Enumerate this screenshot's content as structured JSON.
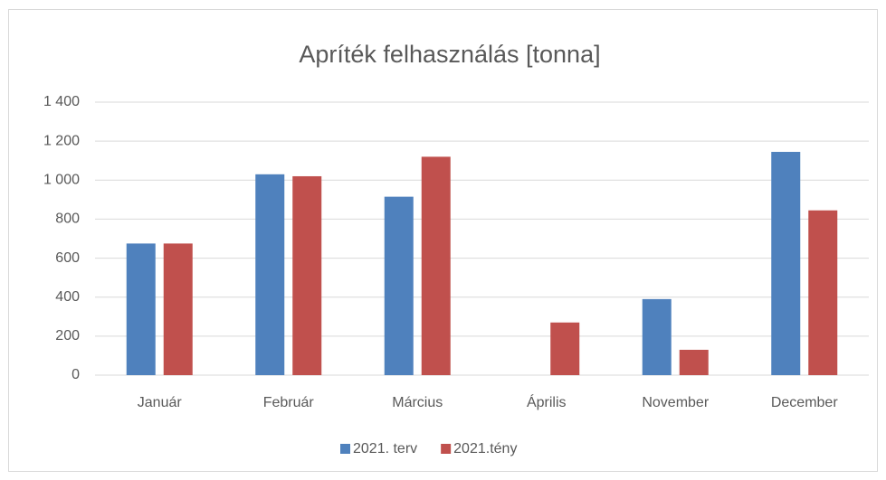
{
  "chart_data": {
    "type": "bar",
    "title": "Apríték felhasználás [tonna]",
    "categories": [
      "Január",
      "Február",
      "Március",
      "Április",
      "November",
      "December"
    ],
    "series": [
      {
        "name": "2021. terv",
        "color": "#4f81bd",
        "values": [
          675,
          1030,
          915,
          0,
          390,
          1145
        ]
      },
      {
        "name": "2021.tény",
        "color": "#c0504d",
        "values": [
          675,
          1020,
          1120,
          270,
          130,
          845
        ]
      }
    ],
    "ylim": [
      0,
      1400
    ],
    "yticks": [
      0,
      200,
      400,
      600,
      800,
      {
        "value": 1000,
        "label": "1 000"
      },
      {
        "value": 1200,
        "label": "1 200"
      },
      {
        "value": 1400,
        "label": "1 400"
      }
    ],
    "grid": true,
    "legend": "bottom"
  }
}
